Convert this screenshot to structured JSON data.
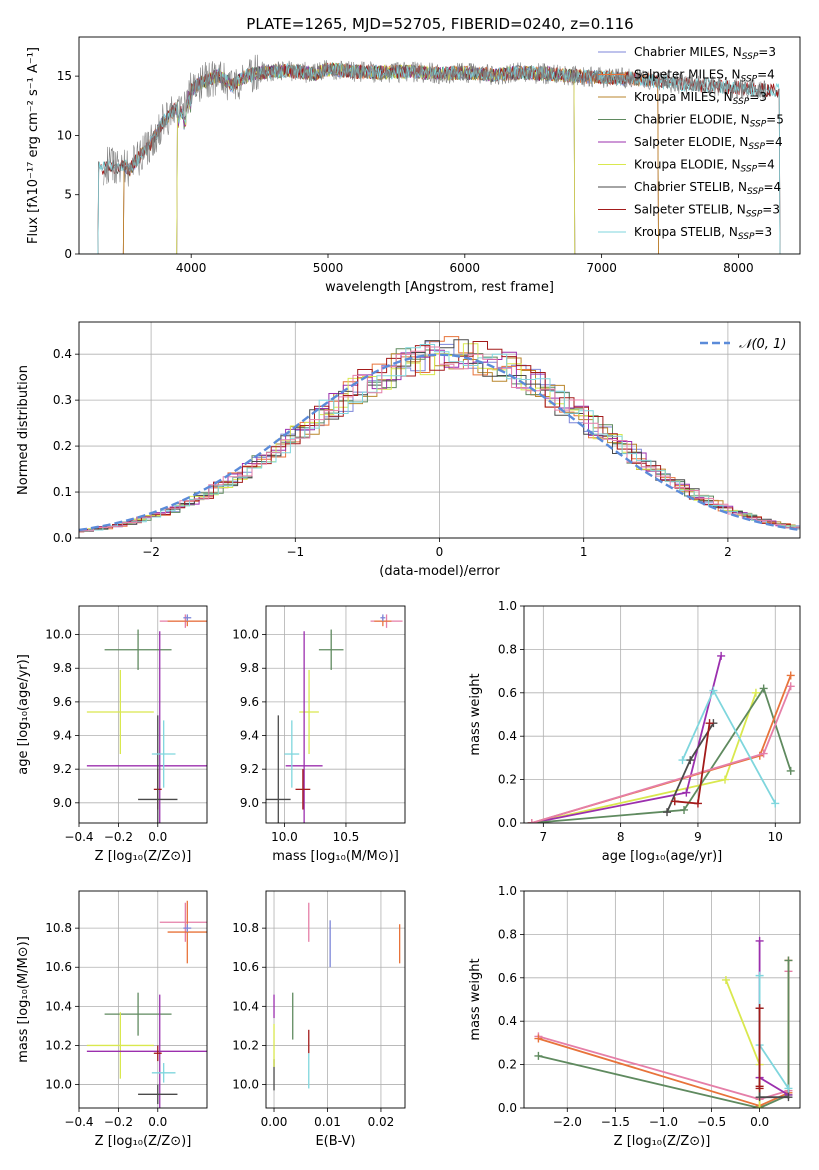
{
  "figure": {
    "suptitle": "PLATE=1265, MJD=52705, FIBERID=0240, z=0.116"
  },
  "chart_data": [
    {
      "id": "spectrum",
      "type": "line",
      "title": "PLATE=1265, MJD=52705, FIBERID=0240, z=0.116",
      "xlabel": "wavelength [Angstrom, rest frame]",
      "ylabel": "Flux [fλ10⁻¹⁷ erg cm⁻² s⁻¹ A⁻¹]",
      "xlim": [
        3180,
        8450
      ],
      "ylim": [
        0,
        18.3
      ],
      "xticks": [
        4000,
        5000,
        6000,
        7000,
        8000
      ],
      "yticks": [
        0,
        5,
        10,
        15
      ],
      "grid": false,
      "legend_position": "top-right",
      "data_series": {
        "name": "data",
        "color": "#808080",
        "x": [
          3360,
          3400,
          3450,
          3500,
          3550,
          3600,
          3650,
          3700,
          3750,
          3800,
          3850,
          3900,
          3950,
          4000,
          4050,
          4100,
          4150,
          4200,
          4300,
          4400,
          4500,
          4700,
          4900,
          5000,
          5200,
          5400,
          5600,
          5800,
          6000,
          6200,
          6400,
          6600,
          6800,
          7000,
          7200,
          7400,
          7600,
          7800,
          8000,
          8200
        ],
        "y": [
          7.2,
          7.6,
          7.3,
          7.5,
          7.1,
          7.9,
          8.6,
          9.2,
          10.3,
          11.2,
          11.8,
          12.4,
          13.0,
          13.8,
          14.3,
          14.6,
          14.8,
          15.1,
          14.2,
          15.0,
          15.3,
          15.5,
          15.2,
          15.6,
          15.4,
          15.3,
          15.4,
          15.2,
          15.3,
          15.1,
          15.3,
          15.2,
          15.0,
          14.9,
          14.8,
          14.6,
          14.3,
          14.2,
          14.0,
          13.8
        ]
      },
      "series": [
        {
          "name": "Chabrier MILES, N_SSP=3",
          "legend": "Chabrier MILES, N",
          "sub": "SSP",
          "tail": "=3",
          "color": "#7d86d9",
          "cutoff": [
            3510,
            7410
          ]
        },
        {
          "name": "Salpeter MILES, N_SSP=4",
          "legend": "Salpeter MILES, N",
          "sub": "SSP",
          "tail": "=4",
          "color": "#e8733a",
          "cutoff": [
            3510,
            7410
          ]
        },
        {
          "name": "Kroupa MILES, N_SSP=3",
          "legend": "Kroupa MILES, N",
          "sub": "SSP",
          "tail": "=3",
          "color": "#b9862c",
          "cutoff": [
            3510,
            7410
          ]
        },
        {
          "name": "Chabrier ELODIE, N_SSP=5",
          "legend": "Chabrier ELODIE, N",
          "sub": "SSP",
          "tail": "=5",
          "color": "#5f8a5f",
          "cutoff": [
            3900,
            6800
          ]
        },
        {
          "name": "Salpeter ELODIE, N_SSP=4",
          "legend": "Salpeter ELODIE, N",
          "sub": "SSP",
          "tail": "=4",
          "color": "#9b2fae",
          "cutoff": [
            3900,
            6800
          ]
        },
        {
          "name": "Kroupa ELODIE, N_SSP=4",
          "legend": "Kroupa ELODIE, N",
          "sub": "SSP",
          "tail": "=4",
          "color": "#d9e84e",
          "cutoff": [
            3900,
            6800
          ]
        },
        {
          "name": "Chabrier STELIB, N_SSP=4",
          "legend": "Chabrier STELIB, N",
          "sub": "SSP",
          "tail": "=4",
          "color": "#4a4a4a",
          "cutoff": [
            3320,
            8300
          ]
        },
        {
          "name": "Salpeter STELIB, N_SSP=3",
          "legend": "Salpeter STELIB, N",
          "sub": "SSP",
          "tail": "=3",
          "color": "#a31b1b",
          "cutoff": [
            3320,
            8300
          ]
        },
        {
          "name": "Kroupa STELIB, N_SSP=3",
          "legend": "Kroupa STELIB, N",
          "sub": "SSP",
          "tail": "=3",
          "color": "#7fd6dd",
          "cutoff": [
            3320,
            8300
          ]
        }
      ]
    },
    {
      "id": "residuals",
      "type": "line",
      "xlabel": "(data-model)/error",
      "ylabel": "Normed distribution",
      "xlim": [
        -2.5,
        2.5
      ],
      "ylim": [
        0,
        0.47
      ],
      "xticks": [
        -2,
        -1,
        0,
        1,
        2
      ],
      "yticks": [
        0.0,
        0.1,
        0.2,
        0.3,
        0.4
      ],
      "grid": true,
      "legend_position": "top-right",
      "reference": {
        "name": "N(0,1)",
        "legend": "𝒩(0, 1)",
        "color": "#5b8bd9",
        "mean": 0,
        "sigma": 1
      },
      "bin_width": 0.1,
      "histogram_colors": [
        "#7d86d9",
        "#e8733a",
        "#b9862c",
        "#5f8a5f",
        "#9b2fae",
        "#d9e84e",
        "#4a4a4a",
        "#a31b1b",
        "#7fd6dd",
        "#e57fa8"
      ]
    },
    {
      "id": "age_vs_Z",
      "type": "scatter",
      "xlabel": "Z [log₁₀(Z/Z⊙)]",
      "ylabel": "age  [log₁₀(age/yr)]",
      "xlim": [
        -0.4,
        0.25
      ],
      "ylim": [
        8.88,
        10.17
      ],
      "xticks": [
        -0.4,
        -0.2,
        0.0
      ],
      "yticks": [
        9.0,
        9.2,
        9.4,
        9.6,
        9.8,
        10.0
      ],
      "grid": true,
      "points": [
        {
          "color": "#5f8a5f",
          "x": -0.1,
          "xerr": 0.17,
          "y": 9.91,
          "yerr": 0.12
        },
        {
          "color": "#d9e84e",
          "x": -0.19,
          "xerr": 0.17,
          "y": 9.54,
          "yerr": 0.25
        },
        {
          "color": "#9b2fae",
          "x": 0.01,
          "xerr": 0.37,
          "y": 9.22,
          "yerr": 0.8
        },
        {
          "color": "#a31b1b",
          "x": 0.0,
          "xerr": 0.02,
          "y": 9.08,
          "yerr": 0.12
        },
        {
          "color": "#4a4a4a",
          "x": 0.0,
          "xerr": 0.1,
          "y": 9.02,
          "yerr": 0.5
        },
        {
          "color": "#7fd6dd",
          "x": 0.03,
          "xerr": 0.06,
          "y": 9.29,
          "yerr": 0.2
        },
        {
          "color": "#e57fa8",
          "x": 0.14,
          "xerr": 0.13,
          "y": 10.08,
          "yerr": 0.04
        },
        {
          "color": "#e8733a",
          "x": 0.15,
          "xerr": 0.1,
          "y": 10.08,
          "yerr": 0.03
        },
        {
          "color": "#7d86d9",
          "x": 0.15,
          "xerr": 0.02,
          "y": 10.1,
          "yerr": 0.02
        }
      ]
    },
    {
      "id": "age_vs_mass",
      "type": "scatter",
      "xlabel": "mass [log₁₀(M/M⊙)]",
      "ylabel": "",
      "xlim": [
        9.85,
        10.98
      ],
      "ylim": [
        8.88,
        10.17
      ],
      "xticks": [
        10.0,
        10.5
      ],
      "yticks": [
        9.0,
        9.2,
        9.4,
        9.6,
        9.8,
        10.0
      ],
      "grid": true,
      "points": [
        {
          "color": "#5f8a5f",
          "x": 10.38,
          "xerr": 0.1,
          "y": 9.91,
          "yerr": 0.12
        },
        {
          "color": "#d9e84e",
          "x": 10.2,
          "xerr": 0.08,
          "y": 9.54,
          "yerr": 0.25
        },
        {
          "color": "#9b2fae",
          "x": 10.16,
          "xerr": 0.15,
          "y": 9.22,
          "yerr": 0.8
        },
        {
          "color": "#a31b1b",
          "x": 10.15,
          "xerr": 0.06,
          "y": 9.08,
          "yerr": 0.12
        },
        {
          "color": "#4a4a4a",
          "x": 9.95,
          "xerr": 0.1,
          "y": 9.02,
          "yerr": 0.5
        },
        {
          "color": "#7fd6dd",
          "x": 10.06,
          "xerr": 0.06,
          "y": 9.29,
          "yerr": 0.2
        },
        {
          "color": "#e57fa8",
          "x": 10.83,
          "xerr": 0.13,
          "y": 10.08,
          "yerr": 0.04
        },
        {
          "color": "#e8733a",
          "x": 10.8,
          "xerr": 0.07,
          "y": 10.08,
          "yerr": 0.03
        },
        {
          "color": "#7d86d9",
          "x": 10.8,
          "xerr": 0.02,
          "y": 10.1,
          "yerr": 0.02
        }
      ]
    },
    {
      "id": "weight_vs_age",
      "type": "line",
      "xlabel": "age  [log₁₀(age/yr)]",
      "ylabel": "mass weight",
      "xlim": [
        6.75,
        10.32
      ],
      "ylim": [
        0,
        1.0
      ],
      "xticks": [
        7,
        8,
        9,
        10
      ],
      "yticks": [
        0.0,
        0.2,
        0.4,
        0.6,
        0.8,
        1.0
      ],
      "grid": true,
      "series": [
        {
          "color": "#d9e84e",
          "x": [
            6.85,
            9.35,
            9.75
          ],
          "y": [
            0.0,
            0.2,
            0.6
          ]
        },
        {
          "color": "#9b2fae",
          "x": [
            6.85,
            8.85,
            9.3
          ],
          "y": [
            0.0,
            0.14,
            0.77
          ]
        },
        {
          "color": "#5f8a5f",
          "x": [
            6.85,
            8.82,
            9.85,
            10.2
          ],
          "y": [
            0.0,
            0.06,
            0.62,
            0.24
          ]
        },
        {
          "color": "#e8733a",
          "x": [
            6.85,
            9.8,
            10.2
          ],
          "y": [
            0.0,
            0.31,
            0.68
          ]
        },
        {
          "color": "#e57fa8",
          "x": [
            6.85,
            9.85,
            10.2
          ],
          "y": [
            0.0,
            0.32,
            0.63
          ]
        },
        {
          "color": "#4a4a4a",
          "x": [
            8.6,
            8.9,
            9.2
          ],
          "y": [
            0.05,
            0.29,
            0.46
          ]
        },
        {
          "color": "#a31b1b",
          "x": [
            8.7,
            9.0,
            9.15
          ],
          "y": [
            0.1,
            0.09,
            0.46
          ]
        },
        {
          "color": "#7fd6dd",
          "x": [
            8.8,
            9.2,
            10.0
          ],
          "y": [
            0.29,
            0.61,
            0.09
          ]
        }
      ]
    },
    {
      "id": "mass_vs_Z",
      "type": "scatter",
      "xlabel": "Z [log₁₀(Z/Z⊙)]",
      "ylabel": "mass [log₁₀(M/M⊙)]",
      "xlim": [
        -0.4,
        0.25
      ],
      "ylim": [
        9.88,
        10.99
      ],
      "xticks": [
        -0.4,
        -0.2,
        0.0
      ],
      "yticks": [
        10.0,
        10.2,
        10.4,
        10.6,
        10.8
      ],
      "grid": true,
      "points": [
        {
          "color": "#5f8a5f",
          "x": -0.1,
          "xerr": 0.17,
          "y": 10.36,
          "yerr": 0.11
        },
        {
          "color": "#d9e84e",
          "x": -0.19,
          "xerr": 0.17,
          "y": 10.2,
          "yerr": 0.17
        },
        {
          "color": "#9b2fae",
          "x": 0.01,
          "xerr": 0.37,
          "y": 10.17,
          "yerr": 0.29
        },
        {
          "color": "#a31b1b",
          "x": 0.0,
          "xerr": 0.02,
          "y": 10.16,
          "yerr": 0.04
        },
        {
          "color": "#4a4a4a",
          "x": 0.0,
          "xerr": 0.1,
          "y": 9.95,
          "yerr": 0.05
        },
        {
          "color": "#7fd6dd",
          "x": 0.03,
          "xerr": 0.06,
          "y": 10.06,
          "yerr": 0.05
        },
        {
          "color": "#e57fa8",
          "x": 0.14,
          "xerr": 0.13,
          "y": 10.83,
          "yerr": 0.1
        },
        {
          "color": "#e8733a",
          "x": 0.15,
          "xerr": 0.1,
          "y": 10.78,
          "yerr": 0.16
        },
        {
          "color": "#7d86d9",
          "x": 0.15,
          "xerr": 0.02,
          "y": 10.8,
          "yerr": 0.02
        }
      ]
    },
    {
      "id": "mass_vs_ebv",
      "type": "scatter",
      "xlabel": "E(B-V)",
      "ylabel": "",
      "xlim": [
        -0.0015,
        0.0245
      ],
      "ylim": [
        9.88,
        10.99
      ],
      "xticks": [
        0.0,
        0.01,
        0.02
      ],
      "xticklabels": [
        "0.00",
        "0.01",
        "0.02"
      ],
      "yticks": [
        10.0,
        10.2,
        10.4,
        10.6,
        10.8
      ],
      "grid": true,
      "points": [
        {
          "color": "#4a4a4a",
          "x": 0.0,
          "y": 10.05,
          "yerr": 0.08
        },
        {
          "color": "#9b2fae",
          "x": 0.0,
          "y": 10.4,
          "yerr": 0.06
        },
        {
          "color": "#d9e84e",
          "x": 0.0,
          "y": 10.2,
          "yerr": 0.11
        },
        {
          "color": "#5f8a5f",
          "x": 0.0035,
          "y": 10.35,
          "yerr": 0.12
        },
        {
          "color": "#a31b1b",
          "x": 0.0065,
          "y": 10.22,
          "yerr": 0.06
        },
        {
          "color": "#7fd6dd",
          "x": 0.0065,
          "y": 10.07,
          "yerr": 0.09
        },
        {
          "color": "#e57fa8",
          "x": 0.0065,
          "y": 10.83,
          "yerr": 0.1
        },
        {
          "color": "#7d86d9",
          "x": 0.0105,
          "y": 10.72,
          "yerr": 0.12
        },
        {
          "color": "#e8733a",
          "x": 0.0235,
          "y": 10.72,
          "yerr": 0.1
        }
      ]
    },
    {
      "id": "weight_vs_Z",
      "type": "line",
      "xlabel": "Z [log₁₀(Z/Z⊙)]",
      "ylabel": "mass weight",
      "xlim": [
        -2.45,
        0.42
      ],
      "ylim": [
        0,
        1.0
      ],
      "xticks": [
        -2.0,
        -1.5,
        -1.0,
        -0.5,
        0.0
      ],
      "xticklabels": [
        "−2.0",
        "−1.5",
        "−1.0",
        "−0.5",
        "0.0"
      ],
      "yticks": [
        0.0,
        0.2,
        0.4,
        0.6,
        0.8,
        1.0
      ],
      "grid": true,
      "series": [
        {
          "color": "#e57fa8",
          "x": [
            -2.3,
            0.0,
            0.3,
            0.3
          ],
          "y": [
            0.33,
            0.04,
            0.08,
            0.63
          ]
        },
        {
          "color": "#e8733a",
          "x": [
            -2.3,
            0.0,
            0.3,
            0.3
          ],
          "y": [
            0.32,
            0.01,
            0.07,
            0.68
          ]
        },
        {
          "color": "#5f8a5f",
          "x": [
            -2.3,
            0.0,
            0.3,
            0.3
          ],
          "y": [
            0.24,
            0.0,
            0.06,
            0.68
          ]
        },
        {
          "color": "#d9e84e",
          "x": [
            -0.35,
            0.0,
            0.0
          ],
          "y": [
            0.59,
            0.2,
            0.0
          ]
        },
        {
          "color": "#9b2fae",
          "x": [
            0.0,
            0.0,
            0.3
          ],
          "y": [
            0.77,
            0.14,
            0.06
          ]
        },
        {
          "color": "#7fd6dd",
          "x": [
            0.0,
            0.0,
            0.3
          ],
          "y": [
            0.61,
            0.29,
            0.09
          ]
        },
        {
          "color": "#4a4a4a",
          "x": [
            0.0,
            0.0,
            0.3
          ],
          "y": [
            0.46,
            0.05,
            0.05
          ]
        },
        {
          "color": "#a31b1b",
          "x": [
            0.0,
            0.0,
            0.0
          ],
          "y": [
            0.46,
            0.09,
            0.1
          ]
        }
      ]
    }
  ]
}
